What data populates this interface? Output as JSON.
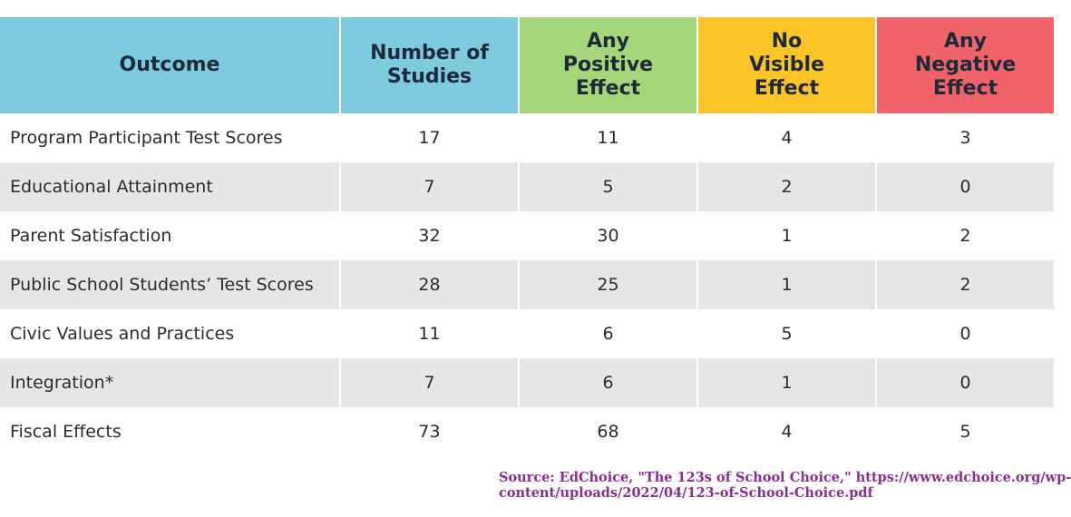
{
  "chart_data": {
    "type": "table",
    "columns": [
      "Outcome",
      "Number of\nStudies",
      "Any\nPositive\nEffect",
      "No\nVisible\nEffect",
      "Any\nNegative\nEffect"
    ],
    "header_colors": [
      "#7ecadf",
      "#7ecadf",
      "#a6d67a",
      "#fdc42a",
      "#f06368"
    ],
    "rows": [
      [
        "Program Participant Test Scores",
        "17",
        "11",
        "4",
        "3"
      ],
      [
        "Educational Attainment",
        "7",
        "5",
        "2",
        "0"
      ],
      [
        "Parent Satisfaction",
        "32",
        "30",
        "1",
        "2"
      ],
      [
        "Public School Students’ Test Scores",
        "28",
        "25",
        "1",
        "2"
      ],
      [
        "Civic Values and Practices",
        "11",
        "6",
        "5",
        "0"
      ],
      [
        "Integration*",
        "7",
        "6",
        "1",
        "0"
      ],
      [
        "Fiscal Effects",
        "73",
        "68",
        "4",
        "5"
      ]
    ]
  },
  "source": {
    "line1": "Source: EdChoice, \"The 123s of School Choice,\" https://www.edchoice.org/wp-",
    "line2": "content/uploads/2022/04/123-of-School-Choice.pdf"
  }
}
